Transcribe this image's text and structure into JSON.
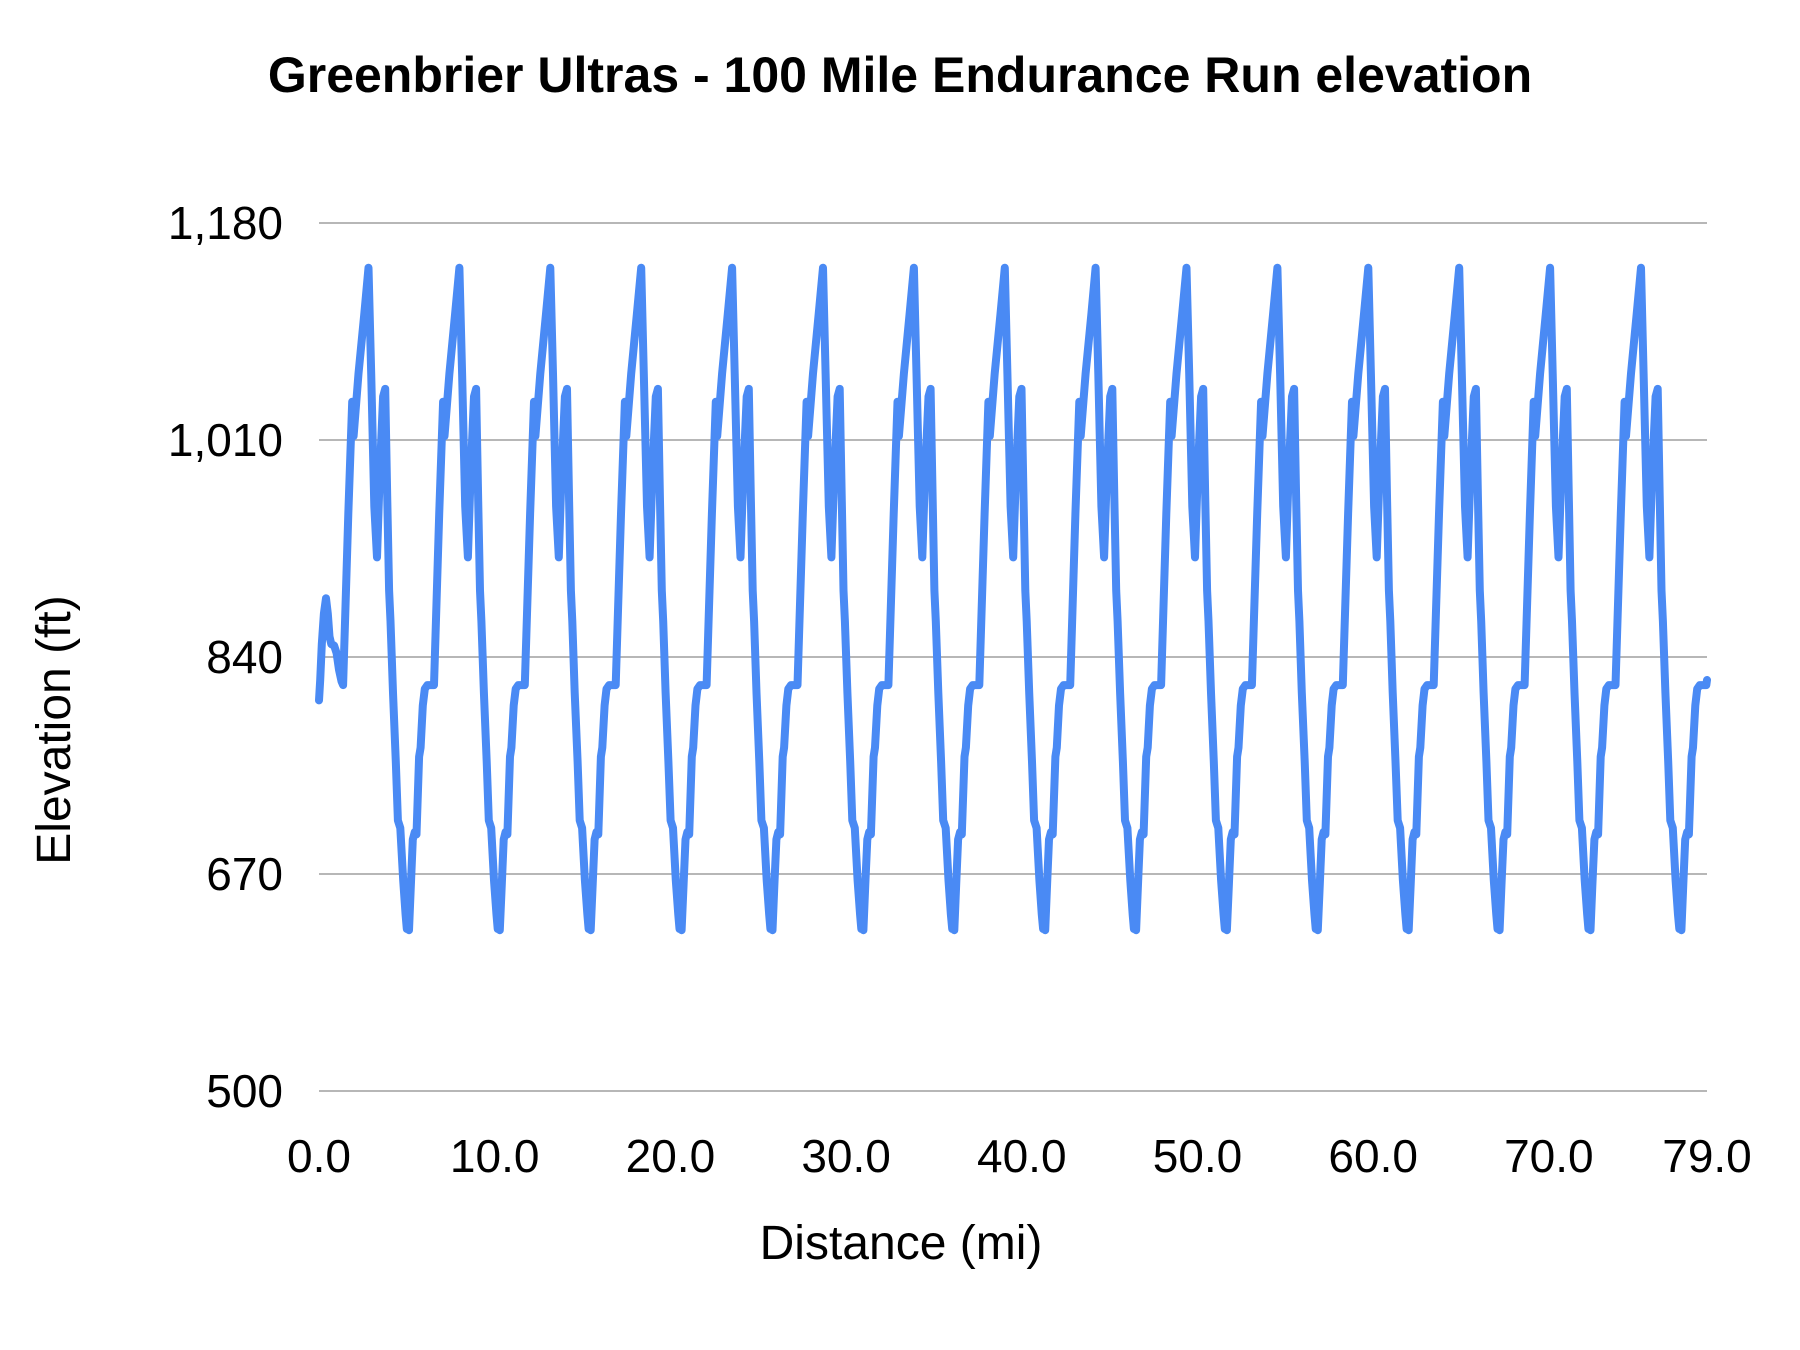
{
  "title": "Greenbrier Ultras - 100 Mile Endurance Run elevation",
  "chart_data": {
    "type": "line",
    "title": "Greenbrier Ultras - 100 Mile Endurance Run elevation",
    "xlabel": "Distance (mi)",
    "ylabel": "Elevation (ft)",
    "x_range": [
      0,
      79
    ],
    "y_range": [
      500,
      1180
    ],
    "grid": true,
    "legend_position": "none",
    "line_color": "#4a8af4",
    "line_width": 8,
    "gridline_color": "#b7b7b7",
    "x_ticks": [
      {
        "label": "0.0",
        "value": 0
      },
      {
        "label": "10.0",
        "value": 10
      },
      {
        "label": "20.0",
        "value": 20
      },
      {
        "label": "30.0",
        "value": 30
      },
      {
        "label": "40.0",
        "value": 40
      },
      {
        "label": "50.0",
        "value": 50
      },
      {
        "label": "60.0",
        "value": 60
      },
      {
        "label": "70.0",
        "value": 70
      },
      {
        "label": "79.0",
        "value": 79
      }
    ],
    "y_ticks": [
      {
        "label": "500",
        "value": 500
      },
      {
        "label": "670",
        "value": 670
      },
      {
        "label": "840",
        "value": 840
      },
      {
        "label": "1,010",
        "value": 1010
      },
      {
        "label": "1,180",
        "value": 1180
      }
    ],
    "series": {
      "name": "elevation",
      "start_profile_mi_ft": [
        [
          0.0,
          806
        ],
        [
          0.07,
          822
        ],
        [
          0.16,
          850
        ],
        [
          0.28,
          874
        ],
        [
          0.4,
          886
        ],
        [
          0.5,
          874
        ],
        [
          0.6,
          856
        ],
        [
          0.7,
          850
        ],
        [
          0.86,
          849
        ],
        [
          1.0,
          843
        ],
        [
          1.14,
          830
        ],
        [
          1.28,
          821
        ],
        [
          1.37,
          818
        ]
      ],
      "laps": {
        "count": 15,
        "first_lap_start_mile": 1.37,
        "lap_interval_mi": 5.173,
        "lap_profile_mi_ft": [
          [
            0.0,
            818
          ],
          [
            0.3,
            952
          ],
          [
            0.52,
            1040
          ],
          [
            0.6,
            1013
          ],
          [
            0.88,
            1062
          ],
          [
            1.2,
            1108
          ],
          [
            1.45,
            1145
          ],
          [
            1.6,
            1062
          ],
          [
            1.78,
            958
          ],
          [
            1.93,
            918
          ],
          [
            2.08,
            980
          ],
          [
            2.28,
            1044
          ],
          [
            2.4,
            1050
          ],
          [
            2.52,
            962
          ],
          [
            2.62,
            892
          ],
          [
            2.7,
            868
          ],
          [
            2.84,
            812
          ],
          [
            3.0,
            758
          ],
          [
            3.12,
            712
          ],
          [
            3.26,
            706
          ],
          [
            3.42,
            665
          ],
          [
            3.56,
            638
          ],
          [
            3.63,
            627
          ],
          [
            3.69,
            646
          ],
          [
            3.75,
            626
          ],
          [
            3.86,
            662
          ],
          [
            3.97,
            697
          ],
          [
            4.08,
            703
          ],
          [
            4.18,
            701
          ],
          [
            4.33,
            762
          ],
          [
            4.41,
            769
          ],
          [
            4.54,
            802
          ],
          [
            4.65,
            815
          ],
          [
            4.8,
            818
          ],
          [
            5.17,
            818
          ]
        ]
      },
      "end_point_mi_ft": [
        79,
        822
      ]
    }
  }
}
